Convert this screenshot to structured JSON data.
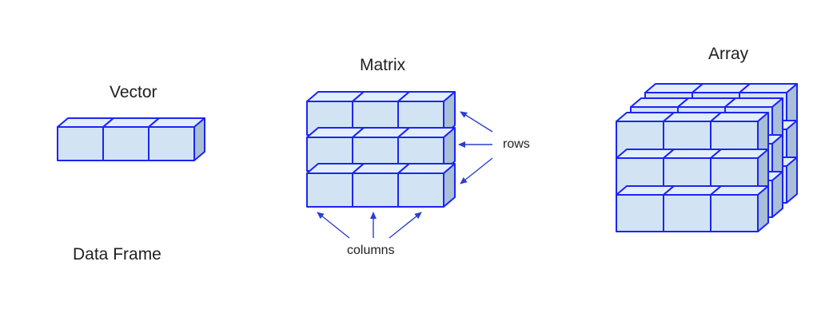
{
  "labels": {
    "vector": "Vector",
    "matrix": "Matrix",
    "array": "Array",
    "data_frame": "Data Frame",
    "rows": "rows",
    "columns": "columns"
  },
  "colors": {
    "cube_front": "#d2e4f4",
    "cube_top": "#e2eefa",
    "cube_side": "#a9bfd3",
    "stroke": "#1c25f2",
    "arrow": "#2a3fd0",
    "text": "#1f1f1f"
  }
}
